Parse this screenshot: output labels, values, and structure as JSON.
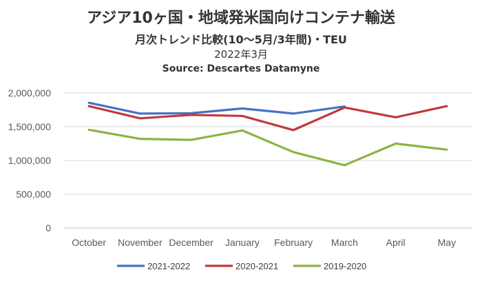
{
  "chart_data": {
    "type": "line",
    "title": "アジア10ヶ国・地域発米国向けコンテナ輸送",
    "subtitle": "月次トレンド比較(10～5月/3年間)・TEU",
    "date": "2022年3月",
    "source": "Source: Descartes Datamyne",
    "categories": [
      "October",
      "November",
      "December",
      "January",
      "February",
      "March",
      "April",
      "May"
    ],
    "yticks": [
      "0",
      "500,000",
      "1,000,000",
      "1,500,000",
      "2,000,000"
    ],
    "ylim": [
      0,
      2000000
    ],
    "grid": true,
    "legend": "bottom",
    "series": [
      {
        "name": "2021-2022",
        "color": "#4472C4",
        "values": [
          1855000,
          1695000,
          1700000,
          1770000,
          1695000,
          1800000,
          null,
          null
        ]
      },
      {
        "name": "2020-2021",
        "color": "#C0393B",
        "values": [
          1805000,
          1625000,
          1675000,
          1660000,
          1450000,
          1785000,
          1640000,
          1805000
        ]
      },
      {
        "name": "2019-2020",
        "color": "#8DB33F",
        "values": [
          1455000,
          1320000,
          1305000,
          1445000,
          1125000,
          930000,
          1250000,
          1160000
        ]
      }
    ]
  }
}
